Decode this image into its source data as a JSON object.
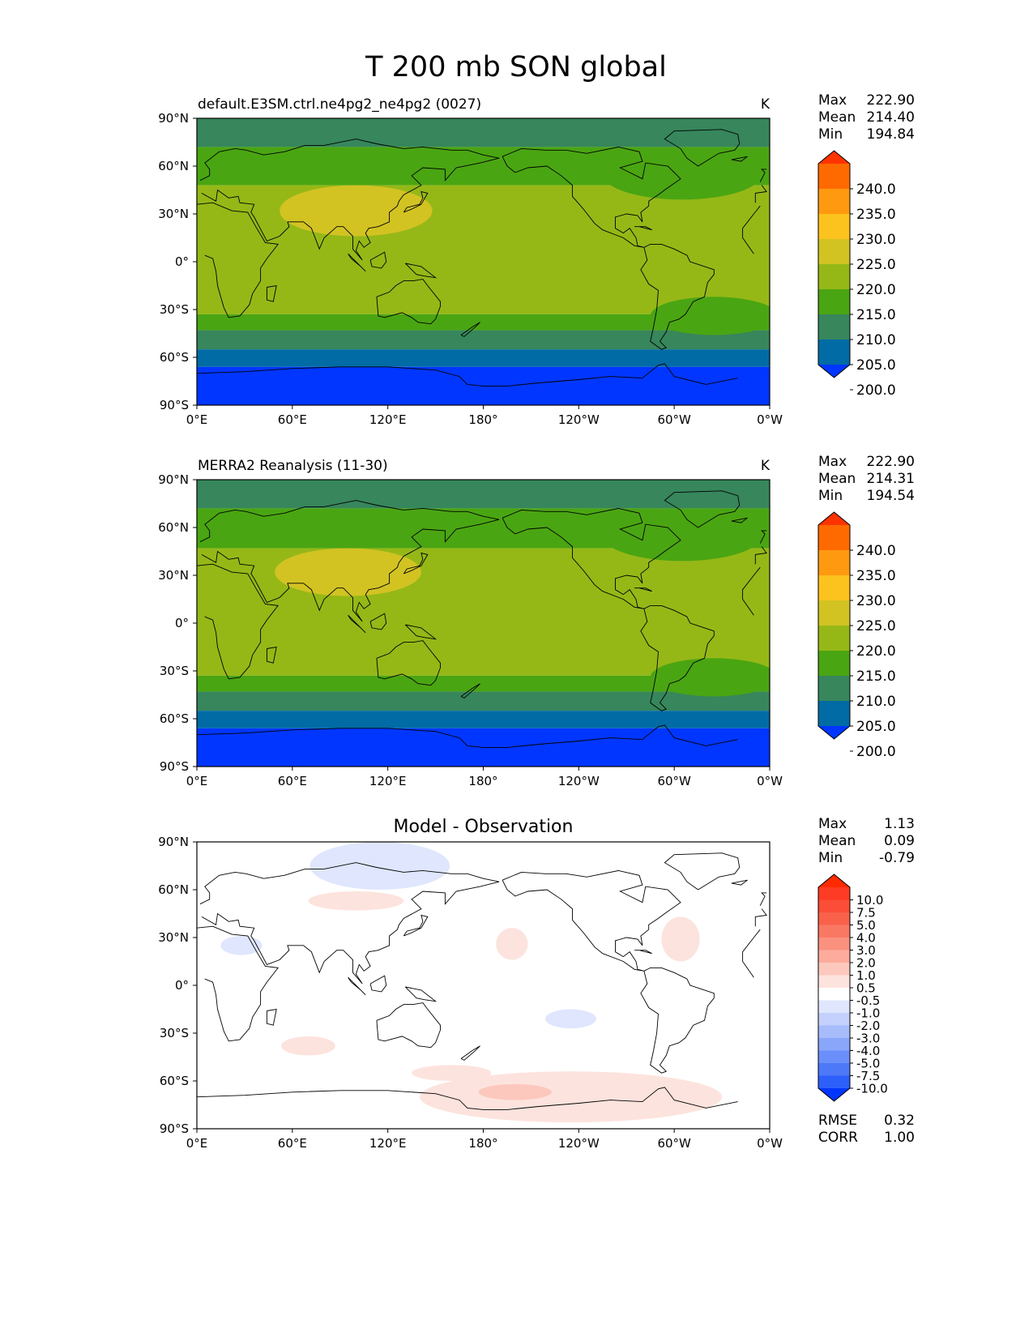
{
  "figure": {
    "title": "T 200 mb SON global"
  },
  "axes": {
    "lat_ticks": [
      "90°N",
      "60°N",
      "30°N",
      "0°",
      "30°S",
      "60°S",
      "90°S"
    ],
    "lon_ticks": [
      "0°E",
      "60°E",
      "120°E",
      "180°",
      "120°W",
      "60°W",
      "0°W"
    ]
  },
  "stat_labels": {
    "max": "Max",
    "mean": "Mean",
    "min": "Min",
    "rmse": "RMSE",
    "corr": "CORR"
  },
  "panels": [
    {
      "id": "test",
      "title_left": "default.E3SM.ctrl.ne4pg2_ne4pg2 (0027)",
      "title_center": "",
      "units": "K",
      "stats": {
        "max": "222.90",
        "mean": "214.40",
        "min": "194.84"
      },
      "colorbar": {
        "labels": [
          "240.0",
          "235.0",
          "230.0",
          "225.0",
          "220.0",
          "215.0",
          "210.0",
          "205.0",
          "200.0"
        ],
        "colors": [
          "#ff3300",
          "#ff6a00",
          "#ff9a10",
          "#fcc21e",
          "#d2c323",
          "#95b817",
          "#4aa512",
          "#37865c",
          "#016ba5",
          "#0036ff"
        ]
      },
      "bands": [
        {
          "lat_top": 90,
          "lat_bottom": 72,
          "color": "#37865c"
        },
        {
          "lat_top": 72,
          "lat_bottom": 48,
          "color": "#4aa512"
        },
        {
          "lat_top": 48,
          "lat_bottom": -33,
          "color": "#95b817"
        },
        {
          "lat_top": -33,
          "lat_bottom": -43,
          "color": "#4aa512"
        },
        {
          "lat_top": -43,
          "lat_bottom": -55,
          "color": "#37865c"
        },
        {
          "lat_top": -55,
          "lat_bottom": -66,
          "color": "#016ba5"
        },
        {
          "lat_top": -66,
          "lat_bottom": -90,
          "color": "#0036ff"
        }
      ],
      "blobs": [
        {
          "lon": 100,
          "lat": 32,
          "rlon": 48,
          "rlat": 16,
          "color": "#d2c323"
        },
        {
          "lon": 305,
          "lat": 55,
          "rlon": 50,
          "rlat": 16,
          "color": "#4aa512"
        },
        {
          "lon": 325,
          "lat": -34,
          "rlon": 40,
          "rlat": 12,
          "color": "#4aa512"
        }
      ]
    },
    {
      "id": "ref",
      "title_left": "MERRA2 Reanalysis (11-30)",
      "title_center": "",
      "units": "K",
      "stats": {
        "max": "222.90",
        "mean": "214.31",
        "min": "194.54"
      },
      "colorbar": {
        "labels": [
          "240.0",
          "235.0",
          "230.0",
          "225.0",
          "220.0",
          "215.0",
          "210.0",
          "205.0",
          "200.0"
        ],
        "colors": [
          "#ff3300",
          "#ff6a00",
          "#ff9a10",
          "#fcc21e",
          "#d2c323",
          "#95b817",
          "#4aa512",
          "#37865c",
          "#016ba5",
          "#0036ff"
        ]
      },
      "bands": [
        {
          "lat_top": 90,
          "lat_bottom": 72,
          "color": "#37865c"
        },
        {
          "lat_top": 72,
          "lat_bottom": 47,
          "color": "#4aa512"
        },
        {
          "lat_top": 47,
          "lat_bottom": -33,
          "color": "#95b817"
        },
        {
          "lat_top": -33,
          "lat_bottom": -43,
          "color": "#4aa512"
        },
        {
          "lat_top": -43,
          "lat_bottom": -55,
          "color": "#37865c"
        },
        {
          "lat_top": -55,
          "lat_bottom": -66,
          "color": "#016ba5"
        },
        {
          "lat_top": -66,
          "lat_bottom": -90,
          "color": "#0036ff"
        }
      ],
      "blobs": [
        {
          "lon": 95,
          "lat": 32,
          "rlon": 46,
          "rlat": 15,
          "color": "#d2c323"
        },
        {
          "lon": 305,
          "lat": 55,
          "rlon": 50,
          "rlat": 16,
          "color": "#4aa512"
        },
        {
          "lon": 325,
          "lat": -34,
          "rlon": 40,
          "rlat": 12,
          "color": "#4aa512"
        }
      ]
    },
    {
      "id": "diff",
      "title_left": "",
      "title_center": "Model - Observation",
      "units": "",
      "stats": {
        "max": "1.13",
        "mean": "0.09",
        "min": "-0.79"
      },
      "extra_stats": {
        "rmse": "0.32",
        "corr": "1.00"
      },
      "colorbar": {
        "labels": [
          "10.0",
          "7.5",
          "5.0",
          "4.0",
          "3.0",
          "2.0",
          "1.0",
          "0.5",
          "-0.5",
          "-1.0",
          "-2.0",
          "-3.0",
          "-4.0",
          "-5.0",
          "-7.5",
          "-10.0"
        ],
        "colors": [
          "#ff2a00",
          "#fe3b24",
          "#fb4d37",
          "#fa614b",
          "#f97864",
          "#fa917f",
          "#fcab9c",
          "#fcc8bd",
          "#fde3dd",
          "#ffffff",
          "#dfe6fd",
          "#c3d1fc",
          "#a6bcfb",
          "#89a6fb",
          "#6b8ffa",
          "#4d78f8",
          "#2d5ffa",
          "#0036ff"
        ]
      },
      "bands": [],
      "blobs": [
        {
          "lon": 115,
          "lat": 75,
          "rlon": 44,
          "rlat": 15,
          "color": "#dfe6fd"
        },
        {
          "lon": 100,
          "lat": 53,
          "rlon": 30,
          "rlat": 6,
          "color": "#fde3dd"
        },
        {
          "lon": 198,
          "lat": 26,
          "rlon": 10,
          "rlat": 10,
          "color": "#fde3dd"
        },
        {
          "lon": 304,
          "lat": 29,
          "rlon": 12,
          "rlat": 14,
          "color": "#fde3dd"
        },
        {
          "lon": 28,
          "lat": 25,
          "rlon": 13,
          "rlat": 6,
          "color": "#dfe6fd"
        },
        {
          "lon": 70,
          "lat": -38,
          "rlon": 17,
          "rlat": 6,
          "color": "#fde3dd"
        },
        {
          "lon": 235,
          "lat": -21,
          "rlon": 16,
          "rlat": 6,
          "color": "#dfe6fd"
        },
        {
          "lon": 160,
          "lat": -55,
          "rlon": 25,
          "rlat": 5,
          "color": "#fde3dd"
        },
        {
          "lon": 235,
          "lat": -70,
          "rlon": 95,
          "rlat": 16,
          "color": "#fde3dd"
        },
        {
          "lon": 200,
          "lat": -67,
          "rlon": 23,
          "rlat": 5,
          "color": "#fcc8bd"
        }
      ]
    }
  ]
}
